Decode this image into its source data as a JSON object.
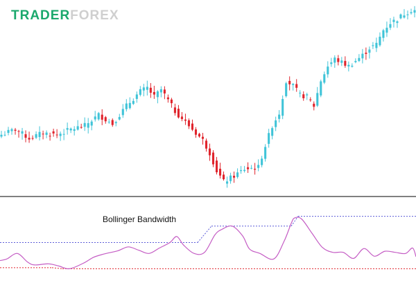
{
  "logo": {
    "part1": "TRADER",
    "part2": "FOREX",
    "color1": "#1aa86c",
    "color2": "#cfcfcf"
  },
  "colors": {
    "bull": "#40c4d8",
    "bear": "#e0242c",
    "indicator_line": "#c45cc4",
    "upper_ref": "#5a5ad8",
    "lower_ref": "#e0242c",
    "separator": "#000000"
  },
  "chart_data": [
    {
      "type": "candlestick",
      "title": "",
      "grid": false,
      "ylim": [
        0,
        100
      ],
      "x_count": 120,
      "close_path": [
        [
          0,
          30
        ],
        [
          4,
          33
        ],
        [
          8,
          28
        ],
        [
          12,
          31
        ],
        [
          16,
          30
        ],
        [
          20,
          33
        ],
        [
          24,
          35
        ],
        [
          28,
          41
        ],
        [
          32,
          36
        ],
        [
          36,
          46
        ],
        [
          40,
          54
        ],
        [
          42,
          56
        ],
        [
          44,
          51
        ],
        [
          46,
          55
        ],
        [
          50,
          43
        ],
        [
          54,
          35
        ],
        [
          58,
          27
        ],
        [
          60,
          20
        ],
        [
          62,
          10
        ],
        [
          64,
          4
        ],
        [
          66,
          6
        ],
        [
          70,
          11
        ],
        [
          74,
          12
        ],
        [
          76,
          24
        ],
        [
          78,
          35
        ],
        [
          80,
          42
        ],
        [
          82,
          60
        ],
        [
          84,
          57
        ],
        [
          86,
          52
        ],
        [
          88,
          51
        ],
        [
          90,
          46
        ],
        [
          92,
          60
        ],
        [
          94,
          68
        ],
        [
          96,
          72
        ],
        [
          98,
          70
        ],
        [
          100,
          68
        ],
        [
          102,
          71
        ],
        [
          104,
          74
        ],
        [
          106,
          78
        ],
        [
          108,
          80
        ],
        [
          110,
          88
        ],
        [
          112,
          92
        ],
        [
          114,
          94
        ],
        [
          116,
          97
        ],
        [
          118,
          99
        ]
      ]
    },
    {
      "type": "line",
      "title": "Bollinger Bandwidth",
      "grid": false,
      "ylim": [
        0,
        100
      ],
      "x": [
        0,
        2,
        5,
        8,
        10,
        14,
        17,
        20,
        24,
        27,
        30,
        34,
        37,
        40,
        43,
        46,
        49,
        51,
        53,
        56,
        59,
        62,
        64,
        67,
        70,
        72,
        75,
        79,
        82,
        84,
        85,
        87,
        90,
        93,
        96,
        99,
        102,
        105,
        108,
        111,
        114,
        117,
        119,
        120
      ],
      "y": [
        17,
        20,
        30,
        14,
        9,
        11,
        7,
        2,
        12,
        23,
        29,
        35,
        42,
        36,
        30,
        40,
        50,
        61,
        45,
        30,
        32,
        64,
        74,
        80,
        62,
        38,
        30,
        20,
        53,
        85,
        95,
        93,
        67,
        41,
        32,
        32,
        21,
        39,
        25,
        34,
        32,
        30,
        40,
        24
      ],
      "reference_lines": [
        {
          "name": "upper",
          "segments": [
            {
              "x": [
                0,
                57
              ],
              "y": 50
            },
            {
              "x": [
                61,
                84
              ],
              "y": 80
            },
            {
              "x": [
                86,
                120
              ],
              "y": 98
            }
          ]
        },
        {
          "name": "lower",
          "segments": [
            {
              "x": [
                0,
                15
              ],
              "y": 4
            },
            {
              "x": [
                18,
                120
              ],
              "y": 2
            }
          ]
        }
      ]
    }
  ]
}
